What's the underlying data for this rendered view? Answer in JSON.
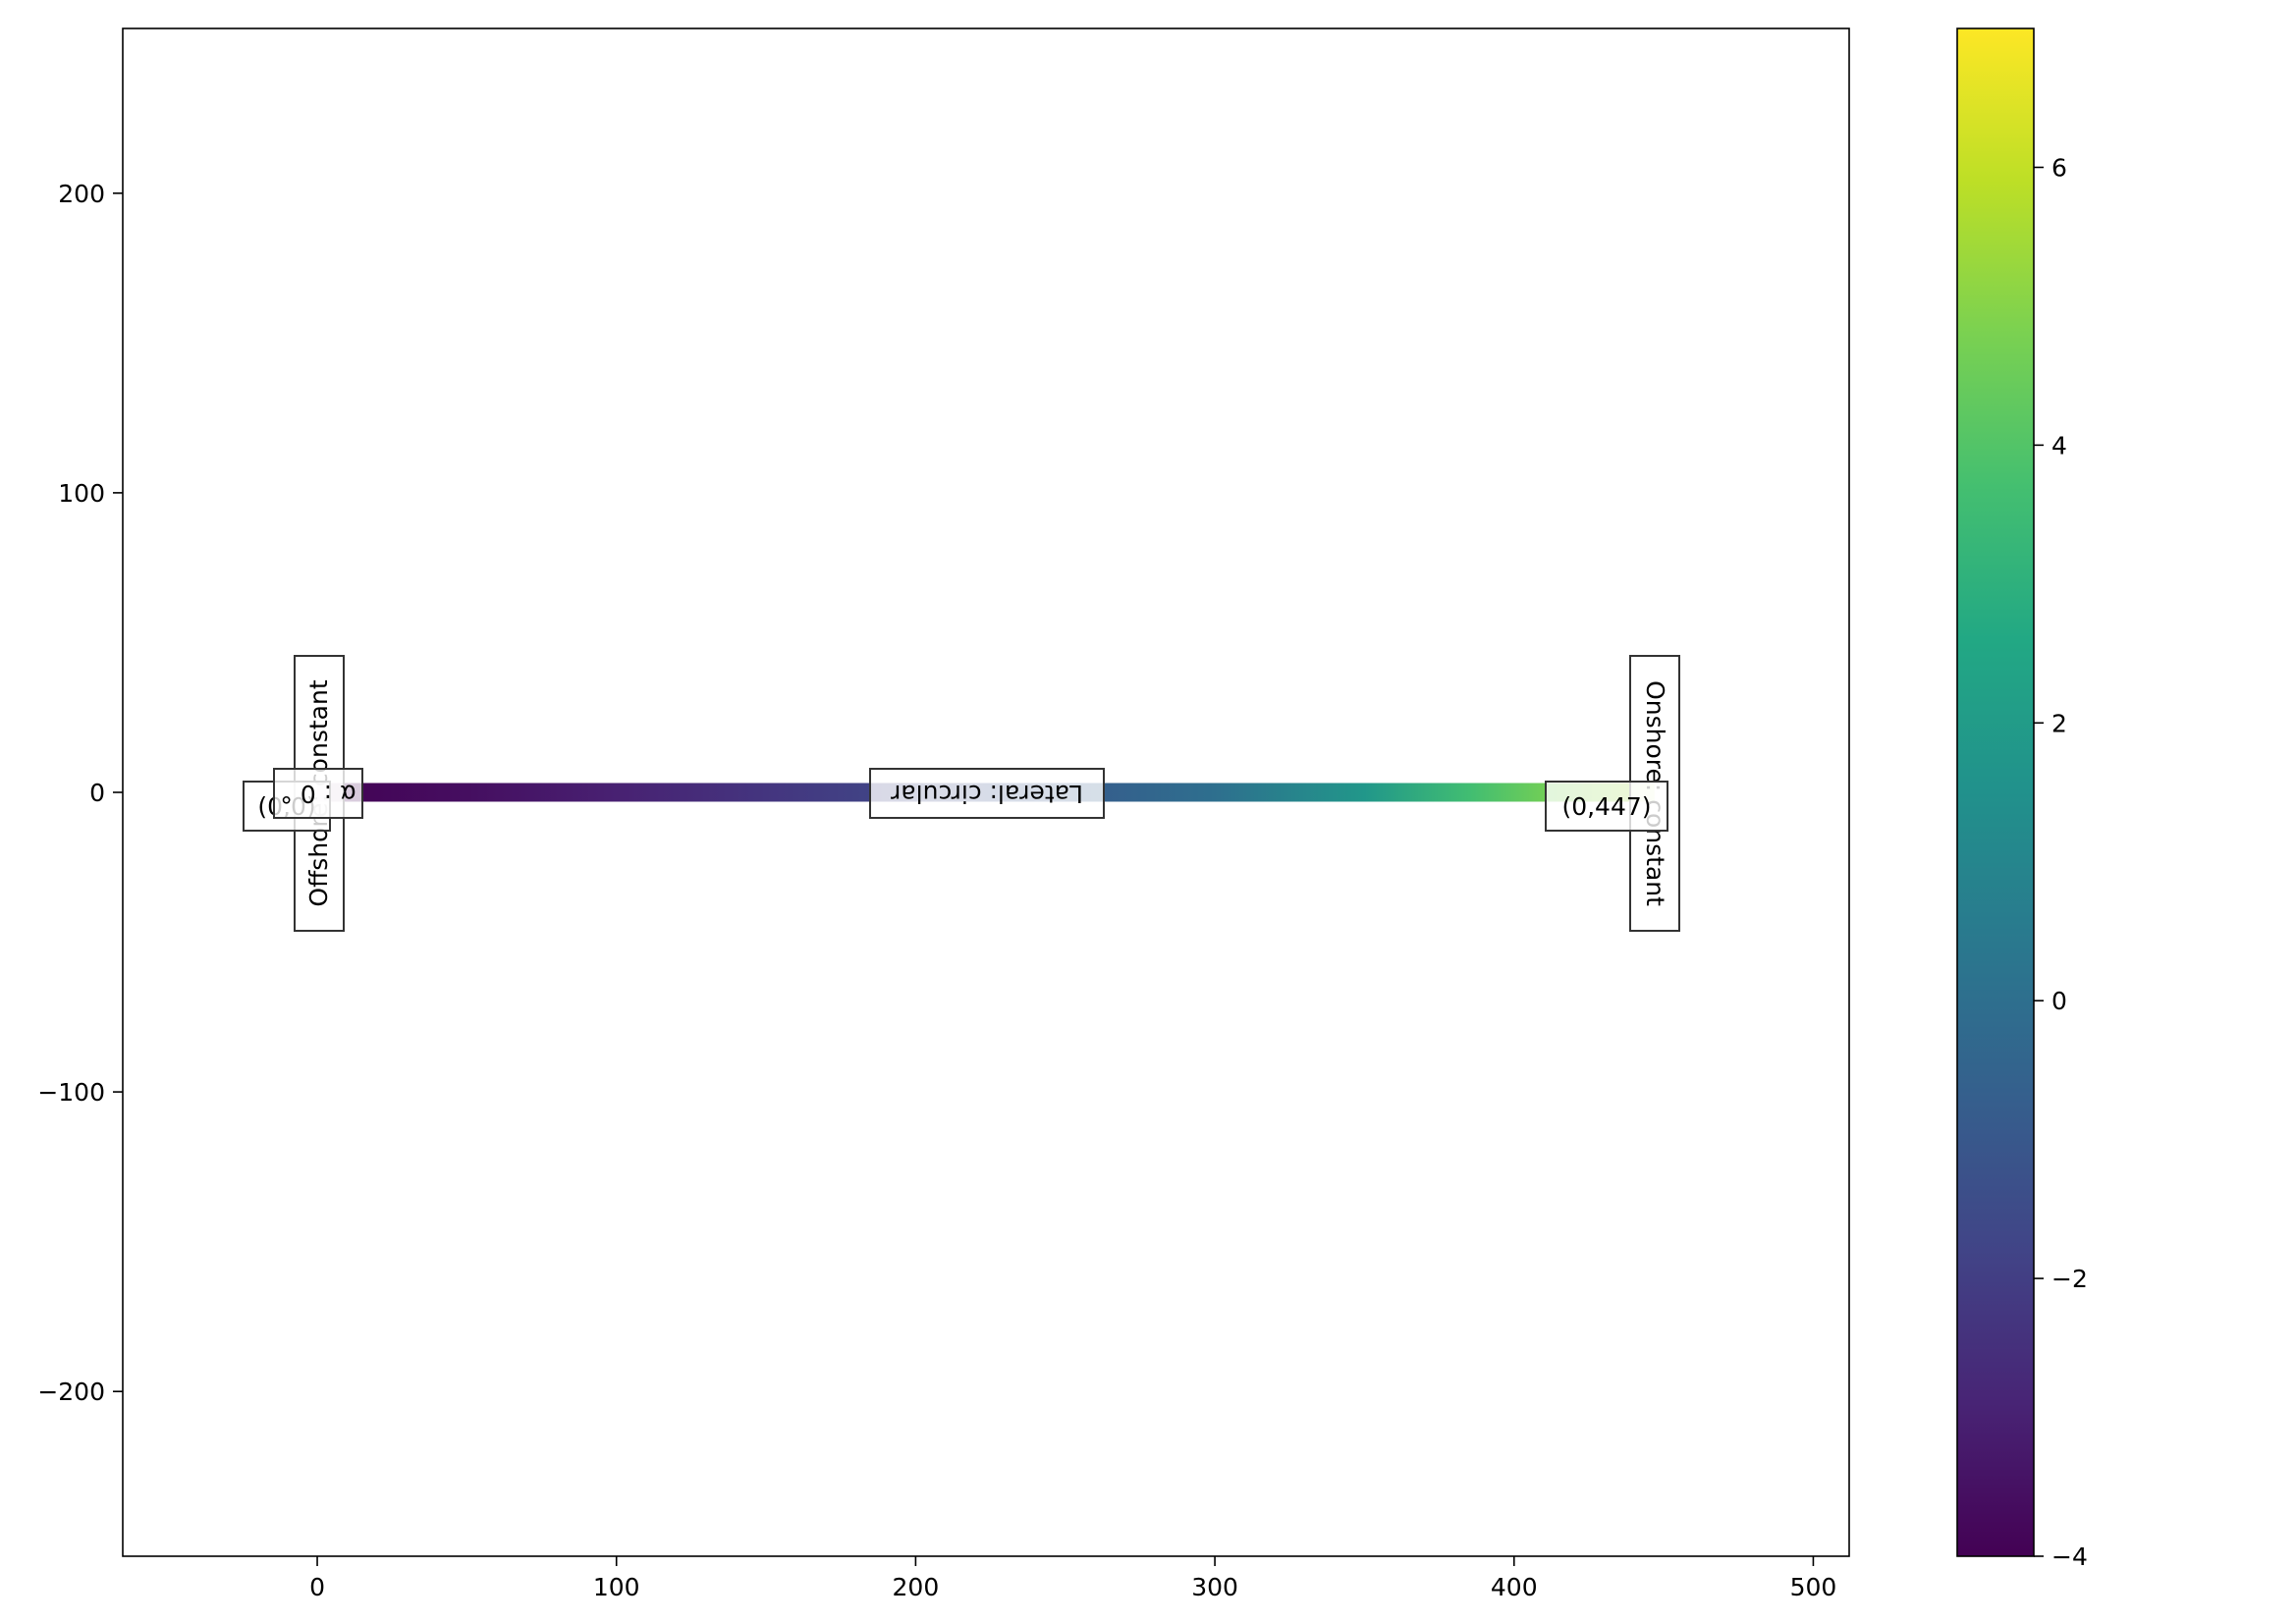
{
  "chart_data": {
    "type": "line",
    "title": "",
    "xlabel": "",
    "ylabel": "",
    "xlim": [
      -65,
      512
    ],
    "ylim": [
      -255,
      255
    ],
    "x_ticks": [
      0,
      100,
      200,
      300,
      400,
      500
    ],
    "x_tick_labels": [
      "0",
      "100",
      "200",
      "300",
      "400",
      "500"
    ],
    "y_ticks": [
      -200,
      -100,
      0,
      100,
      200
    ],
    "y_tick_labels": [
      "−200",
      "−100",
      "0",
      "100",
      "200"
    ],
    "grid": false,
    "colormap": "viridis",
    "series": [
      {
        "x": [
          0,
          447
        ],
        "y": [
          0,
          0
        ],
        "color_values": [
          -4,
          7
        ],
        "color_profile": [
          [
            0,
            -4
          ],
          [
            50,
            -3.6
          ],
          [
            100,
            -3.0
          ],
          [
            150,
            -2.3
          ],
          [
            200,
            -1.6
          ],
          [
            250,
            -0.9
          ],
          [
            300,
            0.0
          ],
          [
            350,
            1.8
          ],
          [
            385,
            3.6
          ],
          [
            410,
            4.6
          ],
          [
            447,
            5.6
          ]
        ]
      }
    ],
    "colorbar": {
      "limits": [
        -4,
        7
      ],
      "ticks": [
        -4,
        -2,
        0,
        2,
        4,
        6
      ],
      "tick_labels": [
        "−4",
        "−2",
        "0",
        "2",
        "4",
        "6"
      ]
    },
    "annotations": {
      "start_point": "(0,0)",
      "end_point": "(0,447)",
      "angle": "α : 0 °",
      "lateral": "Lateral: circular",
      "offshore": "Offshore: constant",
      "onshore": "Onshore: constant"
    }
  }
}
